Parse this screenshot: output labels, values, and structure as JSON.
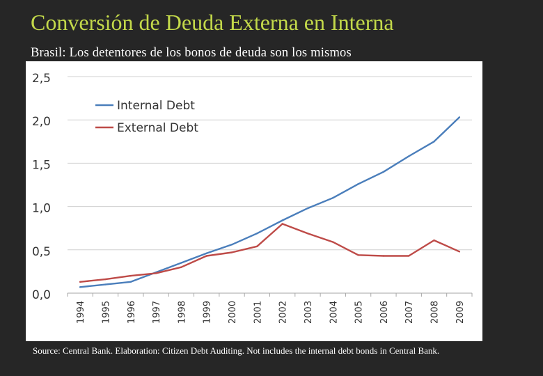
{
  "slide": {
    "title": "Conversión de Deuda Externa en Interna",
    "subtitle": "Brasil: Los detentores de los bonos de deuda son los mismos",
    "source": "Source: Central Bank. Elaboration: Citizen Debt Auditing.  Not includes the internal debt bonds in Central Bank."
  },
  "chart_data": {
    "type": "line",
    "title": "",
    "xlabel": "",
    "ylabel": "",
    "categories": [
      "1994",
      "1995",
      "1996",
      "1997",
      "1998",
      "1999",
      "2000",
      "2001",
      "2002",
      "2003",
      "2004",
      "2005",
      "2006",
      "2007",
      "2008",
      "2009"
    ],
    "ylim": [
      0,
      2.5
    ],
    "yticks": [
      "0,0",
      "0,5",
      "1,0",
      "1,5",
      "2,0",
      "2,5"
    ],
    "ytick_values": [
      0,
      0.5,
      1.0,
      1.5,
      2.0,
      2.5
    ],
    "grid": true,
    "legend_position": "top-left",
    "series": [
      {
        "name": "Internal Debt",
        "color": "#4a7ebb",
        "values": [
          0.07,
          0.1,
          0.13,
          0.24,
          0.35,
          0.46,
          0.56,
          0.69,
          0.84,
          0.98,
          1.1,
          1.26,
          1.4,
          1.58,
          1.75,
          2.03
        ]
      },
      {
        "name": "External Debt",
        "color": "#be4b48",
        "values": [
          0.13,
          0.16,
          0.2,
          0.23,
          0.3,
          0.43,
          0.47,
          0.54,
          0.8,
          0.69,
          0.59,
          0.44,
          0.43,
          0.43,
          0.61,
          0.48
        ]
      }
    ]
  }
}
